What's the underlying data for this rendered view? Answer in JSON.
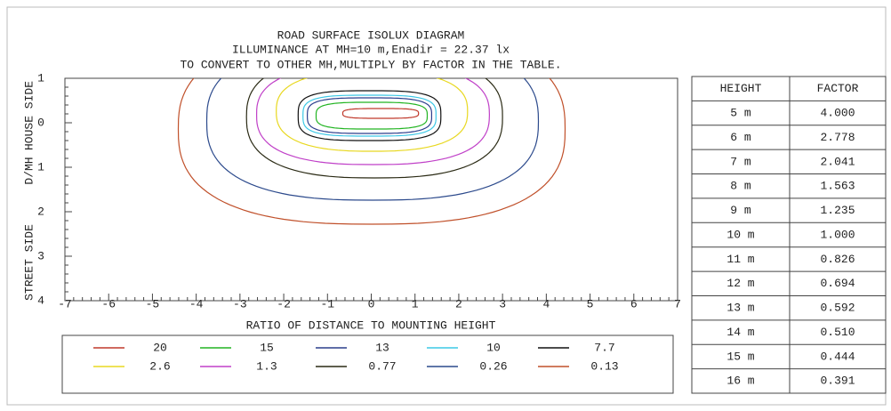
{
  "chart_data": {
    "type": "contour",
    "title": "ROAD SURFACE ISOLUX DIAGRAM",
    "subtitle": "ILLUMINANCE AT MH=10 m,Enadir  = 22.37 lx",
    "annotation": "TO CONVERT TO OTHER MH,MULTIPLY BY FACTOR IN THE TABLE.",
    "xlabel": "RATIO OF DISTANCE TO MOUNTING HEIGHT",
    "ylabel": [
      "HOUSE SIDE",
      "D/MH",
      "STREET SIDE"
    ],
    "xlim": [
      -7,
      7
    ],
    "xticks": [
      -7,
      -6,
      -5,
      -4,
      -3,
      -2,
      -1,
      0,
      1,
      2,
      3,
      4,
      5,
      6,
      7
    ],
    "ylim": [
      -1,
      4
    ],
    "yticks": [
      {
        "value": -1,
        "label": "1"
      },
      0,
      1,
      2,
      3,
      4
    ],
    "series": [
      {
        "level": 20,
        "color": "#c0392b",
        "extent": [
          -0.65,
          1.08,
          -0.32,
          -0.1
        ]
      },
      {
        "level": 15,
        "color": "#22b422",
        "extent": [
          -1.26,
          1.28,
          -0.46,
          0.14
        ]
      },
      {
        "level": 13,
        "color": "#2c3e8c",
        "extent": [
          -1.46,
          1.38,
          -0.56,
          0.24
        ]
      },
      {
        "level": 10,
        "color": "#3cc8e6",
        "extent": [
          -1.56,
          1.48,
          -0.62,
          0.3
        ]
      },
      {
        "level": 7.7,
        "color": "#111111",
        "extent": [
          -1.67,
          1.59,
          -0.72,
          0.4
        ]
      },
      {
        "level": 2.6,
        "color": "#e8d820",
        "extent": [
          -2.17,
          2.2,
          -1.15,
          0.64
        ]
      },
      {
        "level": 1.3,
        "color": "#c040c8",
        "extent": [
          -2.62,
          2.7,
          -1.3,
          0.94
        ]
      },
      {
        "level": 0.77,
        "color": "#2a2a14",
        "extent": [
          -2.85,
          3.0,
          -1.5,
          1.24
        ]
      },
      {
        "level": 0.26,
        "color": "#2c4a8c",
        "extent": [
          -3.76,
          3.82,
          -1.8,
          1.74
        ]
      },
      {
        "level": 0.13,
        "color": "#c0502a",
        "extent": [
          -4.41,
          4.43,
          -2.0,
          2.28
        ]
      }
    ]
  },
  "table": {
    "header": [
      "HEIGHT",
      "FACTOR"
    ],
    "rows": [
      [
        "5 m",
        "4.000"
      ],
      [
        "6 m",
        "2.778"
      ],
      [
        "7 m",
        "2.041"
      ],
      [
        "8 m",
        "1.563"
      ],
      [
        "9 m",
        "1.235"
      ],
      [
        "10 m",
        "1.000"
      ],
      [
        "11 m",
        "0.826"
      ],
      [
        "12 m",
        "0.694"
      ],
      [
        "13 m",
        "0.592"
      ],
      [
        "14 m",
        "0.510"
      ],
      [
        "15 m",
        "0.444"
      ],
      [
        "16 m",
        "0.391"
      ]
    ]
  }
}
